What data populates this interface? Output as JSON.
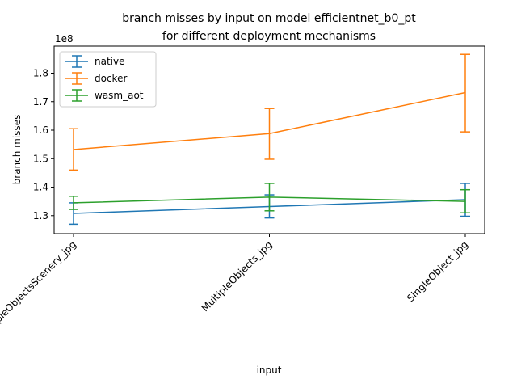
{
  "chart_data": {
    "type": "line",
    "title": "branch misses by input on model efficientnet_b0_pt\nfor different deployment mechanisms",
    "xlabel": "input",
    "ylabel": "branch misses",
    "y_offset_label": "1e8",
    "categories": [
      "MultipleObjectsScenery_jpg",
      "MultipleObjects_jpg",
      "SingleObject_jpg"
    ],
    "ylim": [
      123700000,
      189500000
    ],
    "yticks": [
      130000000,
      140000000,
      150000000,
      160000000,
      170000000,
      180000000
    ],
    "ytick_labels": [
      "1.3",
      "1.4",
      "1.5",
      "1.6",
      "1.7",
      "1.8"
    ],
    "legend_position": "top-left",
    "grid": false,
    "series": [
      {
        "name": "native",
        "color": "#1f77b4",
        "values": [
          130800000,
          133200000,
          135600000
        ],
        "err_low": [
          127000000,
          129200000,
          129800000
        ],
        "err_high": [
          134500000,
          137300000,
          141300000
        ]
      },
      {
        "name": "docker",
        "color": "#ff7f0e",
        "values": [
          153200000,
          158800000,
          173200000
        ],
        "err_low": [
          146000000,
          149800000,
          159400000
        ],
        "err_high": [
          160500000,
          167600000,
          186600000
        ]
      },
      {
        "name": "wasm_aot",
        "color": "#2ca02c",
        "values": [
          134500000,
          136500000,
          135000000
        ],
        "err_low": [
          132200000,
          131700000,
          131000000
        ],
        "err_high": [
          136800000,
          141300000,
          139100000
        ]
      }
    ]
  }
}
